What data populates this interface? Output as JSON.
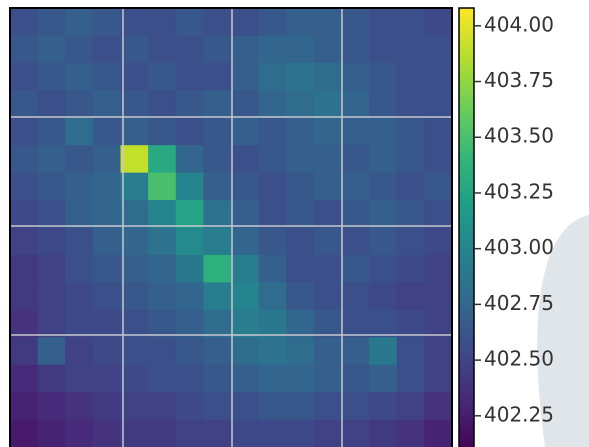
{
  "chart_data": {
    "type": "heatmap",
    "values": [
      [
        402.6,
        402.65,
        402.7,
        402.65,
        402.6,
        402.6,
        402.65,
        402.6,
        402.6,
        402.65,
        402.7,
        402.7,
        402.65,
        402.6,
        402.6,
        402.55
      ],
      [
        402.65,
        402.7,
        402.65,
        402.6,
        402.65,
        402.6,
        402.6,
        402.65,
        402.7,
        402.75,
        402.75,
        402.7,
        402.65,
        402.6,
        402.6,
        402.6
      ],
      [
        402.6,
        402.65,
        402.7,
        402.65,
        402.6,
        402.65,
        402.6,
        402.6,
        402.7,
        402.8,
        402.85,
        402.8,
        402.7,
        402.65,
        402.6,
        402.6
      ],
      [
        402.65,
        402.6,
        402.65,
        402.7,
        402.65,
        402.6,
        402.65,
        402.7,
        402.65,
        402.75,
        402.8,
        402.85,
        402.75,
        402.65,
        402.6,
        402.6
      ],
      [
        402.6,
        402.65,
        402.8,
        402.65,
        402.7,
        402.65,
        402.6,
        402.65,
        402.7,
        402.65,
        402.7,
        402.75,
        402.7,
        402.7,
        402.65,
        402.6
      ],
      [
        402.65,
        402.7,
        402.65,
        402.7,
        403.9,
        403.3,
        402.75,
        402.65,
        402.6,
        402.65,
        402.7,
        402.7,
        402.65,
        402.7,
        402.65,
        402.6
      ],
      [
        402.6,
        402.65,
        402.7,
        402.75,
        402.95,
        403.5,
        403.0,
        402.7,
        402.65,
        402.6,
        402.65,
        402.7,
        402.7,
        402.65,
        402.6,
        402.65
      ],
      [
        402.55,
        402.6,
        402.7,
        402.75,
        402.8,
        403.0,
        403.25,
        402.85,
        402.7,
        402.6,
        402.65,
        402.6,
        402.65,
        402.7,
        402.65,
        402.6
      ],
      [
        402.5,
        402.55,
        402.6,
        402.7,
        402.75,
        402.85,
        403.05,
        402.95,
        402.75,
        402.65,
        402.6,
        402.65,
        402.6,
        402.65,
        402.6,
        402.55
      ],
      [
        402.45,
        402.5,
        402.6,
        402.65,
        402.7,
        402.75,
        402.9,
        403.35,
        402.95,
        402.7,
        402.6,
        402.6,
        402.65,
        402.6,
        402.55,
        402.5
      ],
      [
        402.45,
        402.5,
        402.55,
        402.6,
        402.65,
        402.7,
        402.75,
        402.95,
        403.0,
        402.8,
        402.65,
        402.6,
        402.6,
        402.55,
        402.5,
        402.5
      ],
      [
        402.4,
        402.5,
        402.55,
        402.55,
        402.6,
        402.65,
        402.7,
        402.8,
        402.95,
        402.9,
        402.75,
        402.65,
        402.6,
        402.6,
        402.55,
        402.5
      ],
      [
        402.45,
        402.7,
        402.5,
        402.55,
        402.6,
        402.6,
        402.65,
        402.7,
        402.8,
        402.85,
        402.8,
        402.7,
        402.7,
        402.9,
        402.6,
        402.5
      ],
      [
        402.35,
        402.45,
        402.5,
        402.5,
        402.55,
        402.6,
        402.6,
        402.65,
        402.7,
        402.75,
        402.75,
        402.7,
        402.65,
        402.7,
        402.6,
        402.5
      ],
      [
        402.3,
        402.35,
        402.4,
        402.45,
        402.5,
        402.5,
        402.55,
        402.6,
        402.6,
        402.65,
        402.65,
        402.6,
        402.6,
        402.55,
        402.5,
        402.4
      ],
      [
        402.25,
        402.3,
        402.35,
        402.4,
        402.45,
        402.45,
        402.5,
        402.5,
        402.55,
        402.55,
        402.55,
        402.5,
        402.5,
        402.45,
        402.4,
        402.3
      ]
    ],
    "clim": [
      402.11,
      404.08
    ],
    "colorscale": [
      "#440154",
      "#482878",
      "#3e4989",
      "#31688e",
      "#26828e",
      "#1f9e89",
      "#35b779",
      "#6ece58",
      "#b5de2b",
      "#fde725"
    ],
    "cticks": [
      {
        "value": 404,
        "label": "404.00"
      },
      {
        "value": 403.75,
        "label": "403.75"
      },
      {
        "value": 403.5,
        "label": "403.50"
      },
      {
        "value": 403.25,
        "label": "403.25"
      },
      {
        "value": 403,
        "label": "403.00"
      },
      {
        "value": 402.75,
        "label": "402.75"
      },
      {
        "value": 402.5,
        "label": "402.50"
      },
      {
        "value": 402.25,
        "label": "402.25"
      }
    ],
    "grid": true
  }
}
